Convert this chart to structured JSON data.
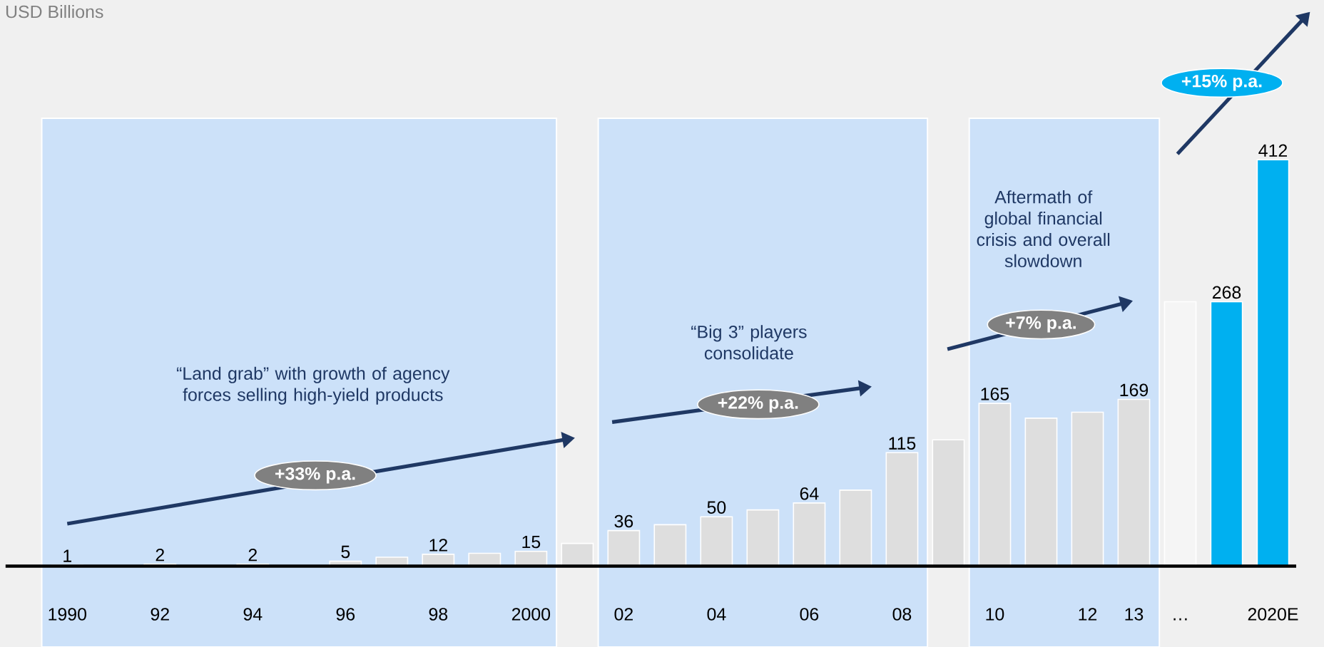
{
  "chart_data": {
    "type": "bar",
    "title": "USD Billions",
    "categories": [
      "1990",
      null,
      "92",
      null,
      "94",
      null,
      "96",
      null,
      "98",
      null,
      "2000",
      null,
      "02",
      null,
      "04",
      null,
      "06",
      null,
      "08",
      null,
      "10",
      null,
      "12",
      "13",
      "…",
      null,
      "2020E"
    ],
    "values": [
      1,
      null,
      2,
      null,
      2,
      null,
      5,
      9,
      12,
      13,
      15,
      23,
      36,
      42,
      50,
      57,
      64,
      77,
      115,
      128,
      165,
      150,
      156,
      169,
      268,
      268,
      412
    ],
    "colors": [
      "#dedede",
      "#dedede",
      "#dedede",
      "#dedede",
      "#dedede",
      "#dedede",
      "#dedede",
      "#dedede",
      "#dedede",
      "#dedede",
      "#dedede",
      "#dedede",
      "#dedede",
      "#dedede",
      "#dedede",
      "#dedede",
      "#dedede",
      "#dedede",
      "#dedede",
      "#dedede",
      "#dedede",
      "#dedede",
      "#dedede",
      "#dedede",
      "#f5f5f5",
      "#00b0f0",
      "#00b0f0"
    ],
    "value_labels": [
      "1",
      null,
      "2",
      null,
      "2",
      null,
      "5",
      null,
      "12",
      null,
      "15",
      null,
      "36",
      null,
      "50",
      null,
      "64",
      null,
      "115",
      null,
      "165",
      null,
      null,
      "169",
      null,
      "268",
      "412"
    ],
    "bands": [
      {
        "axis": "x",
        "from": "1990",
        "to": "2000",
        "label": "“Land grab” with growth of agency forces selling high-yield products",
        "color": "#cce1f9"
      },
      {
        "axis": "x",
        "from": "02",
        "to": "08",
        "label": "“Big 3” players consolidate",
        "color": "#cce1f9"
      },
      {
        "axis": "x",
        "from": "10",
        "to": "13",
        "label": "Aftermath of global financial crisis and overall slowdown",
        "color": "#cce1f9"
      }
    ],
    "annotations": [
      "+33% p.a.",
      "+22% p.a.",
      "+7% p.a.",
      "+15% p.a."
    ]
  }
}
